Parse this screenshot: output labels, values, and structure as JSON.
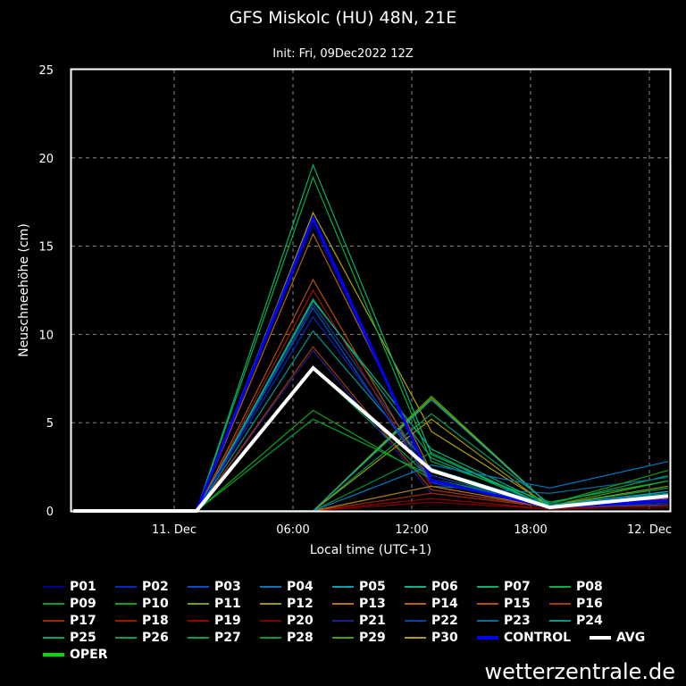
{
  "chart_data": {
    "type": "line",
    "title": "GFS Miskolc (HU) 48N, 21E",
    "subtitle": "Init: Fri, 09Dec2022 12Z",
    "xlabel": "Local time (UTC+1)",
    "ylabel": "Neuschneehöhe (cm)",
    "ylim": [
      0,
      25
    ],
    "yticks": [
      0,
      5,
      10,
      15,
      20,
      25
    ],
    "xtick_labels": [
      "11. Dec",
      "06:00",
      "12:00",
      "18:00",
      "12. Dec"
    ],
    "grid": true,
    "legend_position": "bottom",
    "x": [
      "Dec 10 19:00",
      "Dec 11 01:00",
      "Dec 11 07:00",
      "Dec 11 13:00",
      "Dec 11 19:00",
      "Dec 12 01:00"
    ],
    "series": [
      {
        "name": "P01",
        "color": "#0000a0",
        "values": [
          0,
          0,
          16.2,
          1.8,
          0.2,
          0.5
        ]
      },
      {
        "name": "P02",
        "color": "#0028c8",
        "values": [
          0,
          0,
          11.0,
          2.0,
          0.2,
          0.4
        ]
      },
      {
        "name": "P03",
        "color": "#0050d0",
        "values": [
          0,
          0,
          11.5,
          1.6,
          0.3,
          0.6
        ]
      },
      {
        "name": "P04",
        "color": "#0078c0",
        "values": [
          0,
          0,
          0,
          2.6,
          1.3,
          2.8
        ]
      },
      {
        "name": "P05",
        "color": "#00a0b4",
        "values": [
          0,
          0,
          0,
          6.3,
          0.3,
          1.1
        ]
      },
      {
        "name": "P06",
        "color": "#00b490",
        "values": [
          0,
          0,
          11.9,
          3.5,
          0.3,
          0.8
        ]
      },
      {
        "name": "P07",
        "color": "#00b46c",
        "values": [
          0,
          0,
          19.6,
          3.2,
          0.2,
          0.5
        ]
      },
      {
        "name": "P08",
        "color": "#00b040",
        "values": [
          0,
          0,
          18.9,
          2.8,
          0.5,
          1.7
        ]
      },
      {
        "name": "P09",
        "color": "#00a030",
        "values": [
          0,
          0,
          5.2,
          2.0,
          0.3,
          0.6
        ]
      },
      {
        "name": "P10",
        "color": "#14a014",
        "values": [
          0,
          0,
          5.7,
          1.8,
          0.4,
          2.3
        ]
      },
      {
        "name": "P11",
        "color": "#78a000",
        "values": [
          0,
          0,
          0,
          6.4,
          0.3,
          1.4
        ]
      },
      {
        "name": "P12",
        "color": "#a09600",
        "values": [
          0,
          0,
          0,
          5.2,
          0.2,
          0.8
        ]
      },
      {
        "name": "P13",
        "color": "#b47800",
        "values": [
          0,
          0,
          0,
          1.4,
          0.2,
          0.6
        ]
      },
      {
        "name": "P14",
        "color": "#b46400",
        "values": [
          0,
          0,
          15.7,
          2.2,
          0.2,
          0.4
        ]
      },
      {
        "name": "P15",
        "color": "#b45000",
        "values": [
          0,
          0,
          13.1,
          1.6,
          0.3,
          0.7
        ]
      },
      {
        "name": "P16",
        "color": "#a03c00",
        "values": [
          0,
          0,
          9.3,
          1.2,
          0.2,
          0.5
        ]
      },
      {
        "name": "P17",
        "color": "#a02800",
        "values": [
          0,
          0,
          0,
          1.0,
          0.2,
          0.3
        ]
      },
      {
        "name": "P18",
        "color": "#a01400",
        "values": [
          0,
          0,
          12.5,
          1.4,
          0.2,
          0.6
        ]
      },
      {
        "name": "P19",
        "color": "#960000",
        "values": [
          0,
          0,
          0,
          0.7,
          0.1,
          0.4
        ]
      },
      {
        "name": "P20",
        "color": "#780000",
        "values": [
          0,
          0,
          0,
          0.5,
          0.1,
          0.2
        ]
      },
      {
        "name": "P21",
        "color": "#1e1e96",
        "values": [
          0,
          0,
          9.1,
          1.0,
          0.2,
          0.3
        ]
      },
      {
        "name": "P22",
        "color": "#0046a0",
        "values": [
          0,
          0,
          11.7,
          2.2,
          0.4,
          0.9
        ]
      },
      {
        "name": "P23",
        "color": "#006e96",
        "values": [
          0,
          0,
          0,
          1.4,
          1.0,
          1.9
        ]
      },
      {
        "name": "P24",
        "color": "#00968c",
        "values": [
          0,
          0,
          10.2,
          2.4,
          0.3,
          1.0
        ]
      },
      {
        "name": "P25",
        "color": "#00a078",
        "values": [
          0,
          0,
          12.0,
          3.0,
          0.2,
          0.6
        ]
      },
      {
        "name": "P26",
        "color": "#00a064",
        "values": [
          0,
          0,
          8.1,
          1.8,
          0.3,
          1.3
        ]
      },
      {
        "name": "P27",
        "color": "#00a050",
        "values": [
          0,
          0,
          0,
          5.5,
          0.4,
          2.0
        ]
      },
      {
        "name": "P28",
        "color": "#009640",
        "values": [
          0,
          0,
          0,
          3.3,
          0.2,
          1.1
        ]
      },
      {
        "name": "P29",
        "color": "#46a000",
        "values": [
          0,
          0,
          0,
          6.5,
          0.3,
          1.7
        ]
      },
      {
        "name": "P30",
        "color": "#b4a000",
        "values": [
          0,
          0,
          16.9,
          4.5,
          0.3,
          0.8
        ]
      },
      {
        "name": "CONTROL",
        "color": "#0000ff",
        "values": [
          0,
          0,
          16.6,
          1.7,
          0.2,
          0.6
        ]
      },
      {
        "name": "AVG",
        "color": "#ffffff",
        "values": [
          0,
          0,
          8.1,
          2.3,
          0.2,
          0.85
        ]
      },
      {
        "name": "OPER",
        "color": "#00dc00",
        "values": null
      }
    ]
  },
  "watermark": "wetterzentrale.de"
}
